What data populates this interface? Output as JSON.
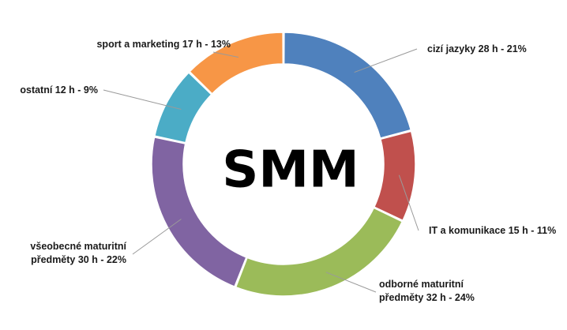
{
  "chart_data": {
    "type": "pie",
    "style": "donut",
    "center_text": "SMM",
    "unit": "h",
    "slices": [
      {
        "label_lines": [
          "cizí jazyky 28 h -  21%"
        ],
        "value": 28,
        "percent": 21,
        "color": "#4F81BD"
      },
      {
        "label_lines": [
          "IT a komunikace 15 h -  11%"
        ],
        "value": 15,
        "percent": 11,
        "color": "#C0504D"
      },
      {
        "label_lines": [
          "odborné maturitní",
          "předměty 32 h -  24%"
        ],
        "value": 32,
        "percent": 24,
        "color": "#9BBB59"
      },
      {
        "label_lines": [
          "všeobecné maturitní",
          "předměty 30 h -  22%"
        ],
        "value": 30,
        "percent": 22,
        "color": "#8064A2"
      },
      {
        "label_lines": [
          "ostatní 12 h -  9%"
        ],
        "value": 12,
        "percent": 9,
        "color": "#4BACC6"
      },
      {
        "label_lines": [
          "sport a marketing 17 h -  13%"
        ],
        "value": 17,
        "percent": 13,
        "color": "#F79646"
      }
    ]
  }
}
